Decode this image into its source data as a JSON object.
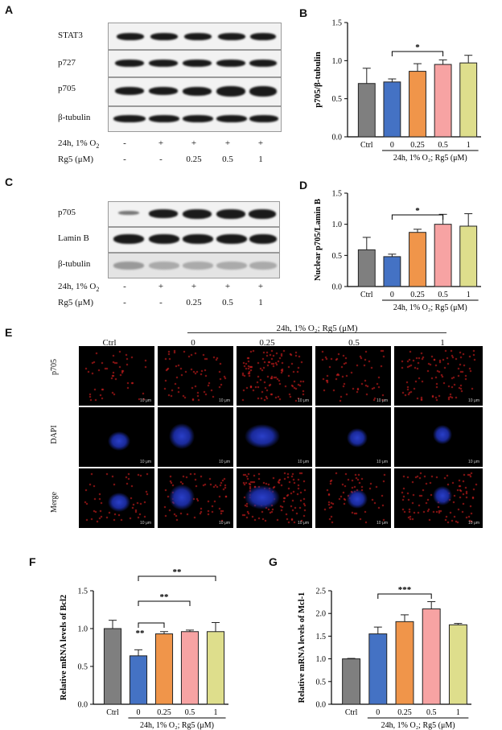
{
  "panels": {
    "A": "A",
    "B": "B",
    "C": "C",
    "D": "D",
    "E": "E",
    "F": "F",
    "G": "G"
  },
  "blot_A": {
    "rows": [
      "STAT3",
      "p727",
      "p705",
      "β-tubulin"
    ],
    "condition_labels": [
      "24h, 1% O",
      "Rg5 (μM)"
    ],
    "hypoxia": [
      "-",
      "+",
      "+",
      "+",
      "+"
    ],
    "rg5": [
      "-",
      "-",
      "0.25",
      "0.5",
      "1"
    ]
  },
  "blot_C": {
    "rows": [
      "p705",
      "Lamin B",
      "β-tubulin"
    ],
    "condition_labels": [
      "24h, 1% O",
      "Rg5 (μM)"
    ],
    "hypoxia": [
      "-",
      "+",
      "+",
      "+",
      "+"
    ],
    "rg5": [
      "-",
      "-",
      "0.25",
      "0.5",
      "1"
    ]
  },
  "micrographs": {
    "header": "24h, 1% O₂; Rg5 (μM)",
    "columns": [
      "Ctrl",
      "0",
      "0.25",
      "0.5",
      "1"
    ],
    "rows": [
      "p705",
      "DAPI",
      "Merge"
    ],
    "scale": "10 μm"
  },
  "chart_data": [
    {
      "panel": "B",
      "type": "bar",
      "ylabel": "p705/β-tubulin",
      "categories": [
        "Ctrl",
        "0",
        "0.25",
        "0.5",
        "1"
      ],
      "values": [
        0.7,
        0.72,
        0.86,
        0.95,
        0.97
      ],
      "errors": [
        0.2,
        0.04,
        0.1,
        0.06,
        0.1
      ],
      "colors": [
        "#7f7f7f",
        "#4472c4",
        "#f0954a",
        "#f7a3a3",
        "#dede8c"
      ],
      "ylim": [
        0,
        1.5
      ],
      "yticks": [
        "0.0",
        "0.5",
        "1.0",
        "1.5"
      ],
      "xgroup_label": "24h, 1% O₂; Rg5 (μM)",
      "significance": [
        {
          "from": 1,
          "to": 3,
          "label": "*"
        }
      ]
    },
    {
      "panel": "D",
      "type": "bar",
      "ylabel": "Nuclear p705/Lamin B",
      "categories": [
        "Ctrl",
        "0",
        "0.25",
        "0.5",
        "1"
      ],
      "values": [
        0.59,
        0.48,
        0.87,
        1.0,
        0.97
      ],
      "errors": [
        0.2,
        0.04,
        0.05,
        0.16,
        0.2
      ],
      "colors": [
        "#7f7f7f",
        "#4472c4",
        "#f0954a",
        "#f7a3a3",
        "#dede8c"
      ],
      "ylim": [
        0,
        1.5
      ],
      "yticks": [
        "0.0",
        "0.5",
        "1.0",
        "1.5"
      ],
      "xgroup_label": "24h, 1% O₂; Rg5 (μM)",
      "significance": [
        {
          "from": 1,
          "to": 3,
          "label": "*"
        }
      ]
    },
    {
      "panel": "F",
      "type": "bar",
      "ylabel": "Relative mRNA levels of Bcl2",
      "categories": [
        "Ctrl",
        "0",
        "0.25",
        "0.5",
        "1"
      ],
      "values": [
        1.0,
        0.64,
        0.93,
        0.96,
        0.96
      ],
      "errors": [
        0.11,
        0.08,
        0.03,
        0.02,
        0.12
      ],
      "colors": [
        "#7f7f7f",
        "#4472c4",
        "#f0954a",
        "#f7a3a3",
        "#dede8c"
      ],
      "ylim": [
        0,
        1.5
      ],
      "yticks": [
        "0.0",
        "0.5",
        "1.0",
        "1.5"
      ],
      "xgroup_label": "24h, 1% O₂; Rg5 (μM)",
      "significance": [
        {
          "from": 1,
          "to": 2,
          "label": "**"
        },
        {
          "from": 1,
          "to": 3,
          "label": "**"
        },
        {
          "from": 1,
          "to": 4,
          "label": "**"
        }
      ]
    },
    {
      "panel": "G",
      "type": "bar",
      "ylabel": "Relative mRNA levels of Mcl-1",
      "categories": [
        "Ctrl",
        "0",
        "0.25",
        "0.5",
        "1"
      ],
      "values": [
        1.0,
        1.55,
        1.82,
        2.1,
        1.75
      ],
      "errors": [
        0.01,
        0.15,
        0.15,
        0.16,
        0.03
      ],
      "colors": [
        "#7f7f7f",
        "#4472c4",
        "#f0954a",
        "#f7a3a3",
        "#dede8c"
      ],
      "ylim": [
        0,
        2.5
      ],
      "yticks": [
        "0.0",
        "0.5",
        "1.0",
        "1.5",
        "2.0",
        "2.5"
      ],
      "xgroup_label": "24h, 1% O₂; Rg5 (μM)",
      "significance": [
        {
          "from": 1,
          "to": 3,
          "label": "***"
        }
      ]
    }
  ]
}
